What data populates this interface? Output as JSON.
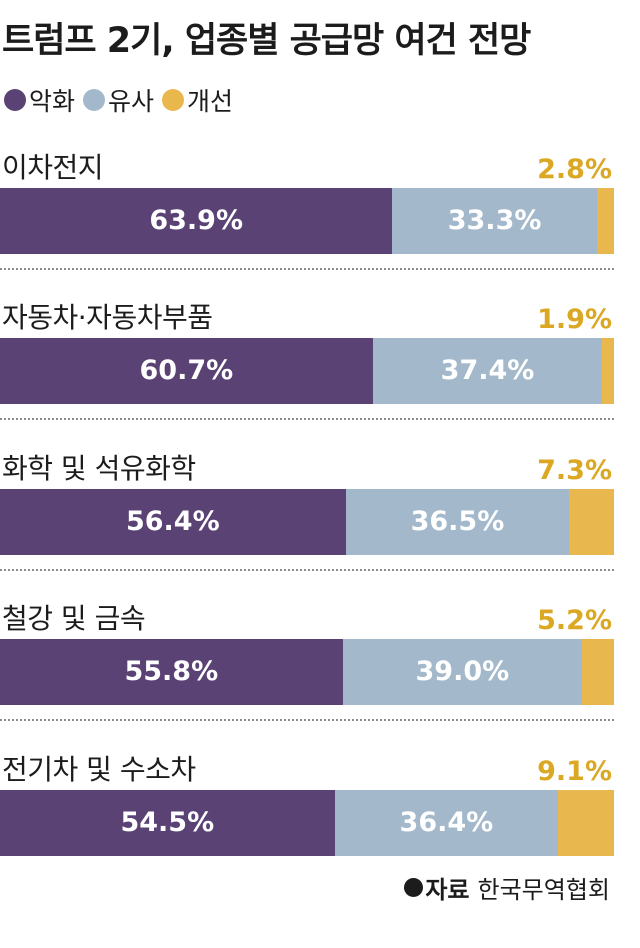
{
  "title": "트럼프 2기, 업종별 공급망 여건 전망",
  "source_key": "자료",
  "source_value": "한국무역협회",
  "chart_data": {
    "type": "bar",
    "orientation": "horizontal",
    "stacked": true,
    "percent_stacked": true,
    "title": "트럼프 2기, 업종별 공급망 여건 전망",
    "legend_position": "top-left",
    "grid": false,
    "categories": [
      "이차전지",
      "자동차·자동차부품",
      "화학 및 석유화학",
      "철강 및 금속",
      "전기차 및 수소차"
    ],
    "series": [
      {
        "name": "악화",
        "color": "#5a4275",
        "values": [
          63.9,
          60.7,
          56.4,
          55.8,
          54.5
        ],
        "labels": [
          "63.9%",
          "60.7%",
          "56.4%",
          "55.8%",
          "54.5%"
        ]
      },
      {
        "name": "유사",
        "color": "#a3b9cb",
        "values": [
          33.3,
          37.4,
          36.5,
          39.0,
          36.4
        ],
        "labels": [
          "33.3%",
          "37.4%",
          "36.5%",
          "39.0%",
          "36.4%"
        ]
      },
      {
        "name": "개선",
        "color": "#e8b84f",
        "values": [
          2.8,
          1.9,
          7.3,
          5.2,
          9.1
        ],
        "labels": [
          "2.8%",
          "1.9%",
          "7.3%",
          "5.2%",
          "9.1%"
        ]
      }
    ]
  }
}
